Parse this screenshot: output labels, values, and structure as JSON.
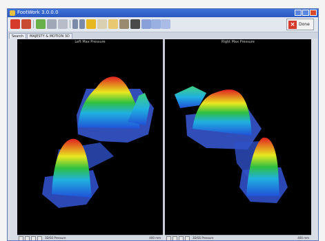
{
  "window": {
    "title": "FootWork 3.0.0.0"
  },
  "toolbar": {
    "icons": [
      "stop-icon",
      "run-icon",
      "play-icon",
      "settings-icon",
      "layers-icon",
      "arrow-icon",
      "arrow-icon-2",
      "record-icon",
      "print-icon",
      "photo-icon",
      "export-icon",
      "foot-icon",
      "chart-icon",
      "chart-icon-2",
      "chart-icon-3"
    ],
    "done_label": "Done"
  },
  "tabs": [
    {
      "label": "Search"
    },
    {
      "label": "MAJESTY & MOTION 3D"
    }
  ],
  "panels": {
    "left": {
      "title": "Left Max Pressure"
    },
    "right": {
      "title": "Right Max Pressure"
    }
  },
  "statusbar": {
    "left_text": "3D/SS Pressure",
    "left_right_text": "400 mm",
    "right_text": "3D/SS Pressure",
    "right_right_text": "400 mm"
  },
  "colors": {
    "titlebar": "#2a58c0",
    "heat_high": "#e02020",
    "heat_mid": "#e8e820",
    "heat_low": "#2050d8"
  }
}
